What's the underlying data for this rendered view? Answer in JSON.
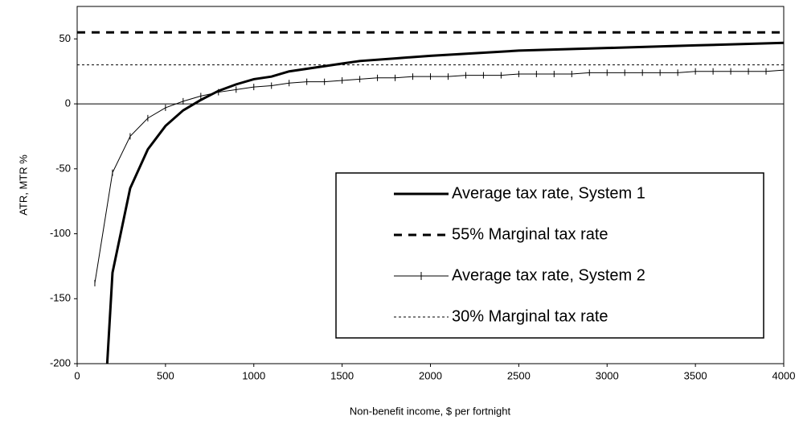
{
  "chart_data": {
    "type": "line",
    "x_label": "Non-benefit income, $ per fortnight",
    "y_label": "ATR, MTR %",
    "xlim": [
      0,
      4000
    ],
    "xticks": [
      0,
      500,
      1000,
      1500,
      2000,
      2500,
      3000,
      3500,
      4000
    ],
    "ylim": [
      -200,
      75
    ],
    "yticks": [
      -200,
      -150,
      -100,
      -50,
      0,
      50
    ],
    "series": [
      {
        "name": "Average tax rate, System 1",
        "color": "#000000",
        "line_width": 3,
        "dash": "solid",
        "marker": "none",
        "x": [
          170,
          200,
          300,
          400,
          500,
          600,
          700,
          800,
          900,
          1000,
          1100,
          1200,
          1300,
          1400,
          1500,
          1600,
          1800,
          2000,
          2500,
          3000,
          3500,
          4000
        ],
        "values": [
          -200,
          -130,
          -65,
          -35,
          -17,
          -5,
          3,
          10,
          15,
          19,
          21,
          25,
          27,
          29,
          31,
          33,
          35,
          37,
          41,
          43,
          45,
          47
        ]
      },
      {
        "name": "55% Marginal tax rate",
        "color": "#000000",
        "line_width": 3,
        "dash": "dashed",
        "marker": "none",
        "x": [
          0,
          4000
        ],
        "values": [
          55,
          55
        ]
      },
      {
        "name": "Average tax rate, System 2",
        "color": "#000000",
        "line_width": 1,
        "dash": "solid",
        "marker": "plus",
        "x": [
          100,
          200,
          300,
          400,
          500,
          600,
          700,
          800,
          900,
          1000,
          1100,
          1200,
          1300,
          1400,
          1500,
          1600,
          1700,
          1800,
          1900,
          2000,
          2100,
          2200,
          2300,
          2400,
          2500,
          2600,
          2700,
          2800,
          2900,
          3000,
          3100,
          3200,
          3300,
          3400,
          3500,
          3600,
          3700,
          3800,
          3900,
          4000
        ],
        "values": [
          -138,
          -53,
          -25,
          -11,
          -3,
          2,
          6,
          9,
          11,
          13,
          14,
          16,
          17,
          17,
          18,
          19,
          20,
          20,
          21,
          21,
          21,
          22,
          22,
          22,
          23,
          23,
          23,
          23,
          24,
          24,
          24,
          24,
          24,
          24,
          25,
          25,
          25,
          25,
          25,
          26
        ]
      },
      {
        "name": "30% Marginal tax rate",
        "color": "#000000",
        "line_width": 1,
        "dash": "dotted",
        "marker": "none",
        "x": [
          0,
          4000
        ],
        "values": [
          30,
          30
        ]
      }
    ],
    "legend": "lower-right"
  }
}
